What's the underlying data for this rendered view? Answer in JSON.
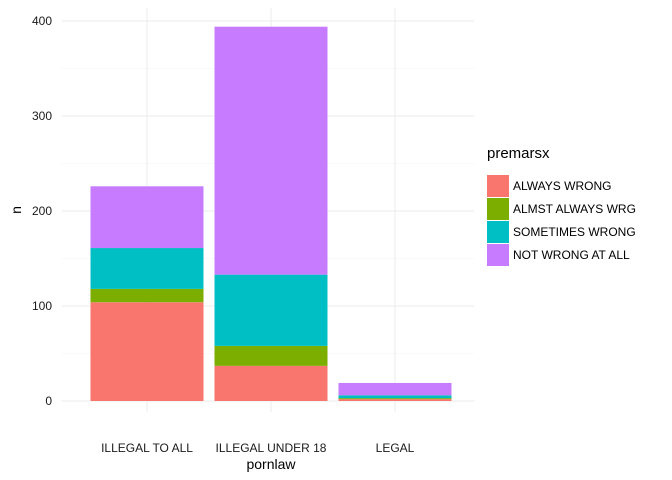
{
  "chart_data": {
    "type": "bar",
    "stacked": true,
    "categories": [
      "ILLEGAL TO ALL",
      "ILLEGAL UNDER 18",
      "LEGAL"
    ],
    "series": [
      {
        "name": "ALWAYS WRONG",
        "color": "#F8766D",
        "values": [
          104,
          37,
          2
        ]
      },
      {
        "name": "ALMST ALWAYS WRG",
        "color": "#7CAE00",
        "values": [
          14,
          21,
          1
        ]
      },
      {
        "name": "SOMETIMES WRONG",
        "color": "#00BFC4",
        "values": [
          43,
          75,
          3
        ]
      },
      {
        "name": "NOT WRONG AT ALL",
        "color": "#C77CFF",
        "values": [
          65,
          261,
          13
        ]
      }
    ],
    "xlabel": "pornlaw",
    "ylabel": "n",
    "ylim": [
      0,
      415
    ],
    "yticks": [
      0,
      100,
      200,
      300,
      400
    ],
    "legend_title": "premarsx",
    "legend_position": "right",
    "grid": true
  }
}
